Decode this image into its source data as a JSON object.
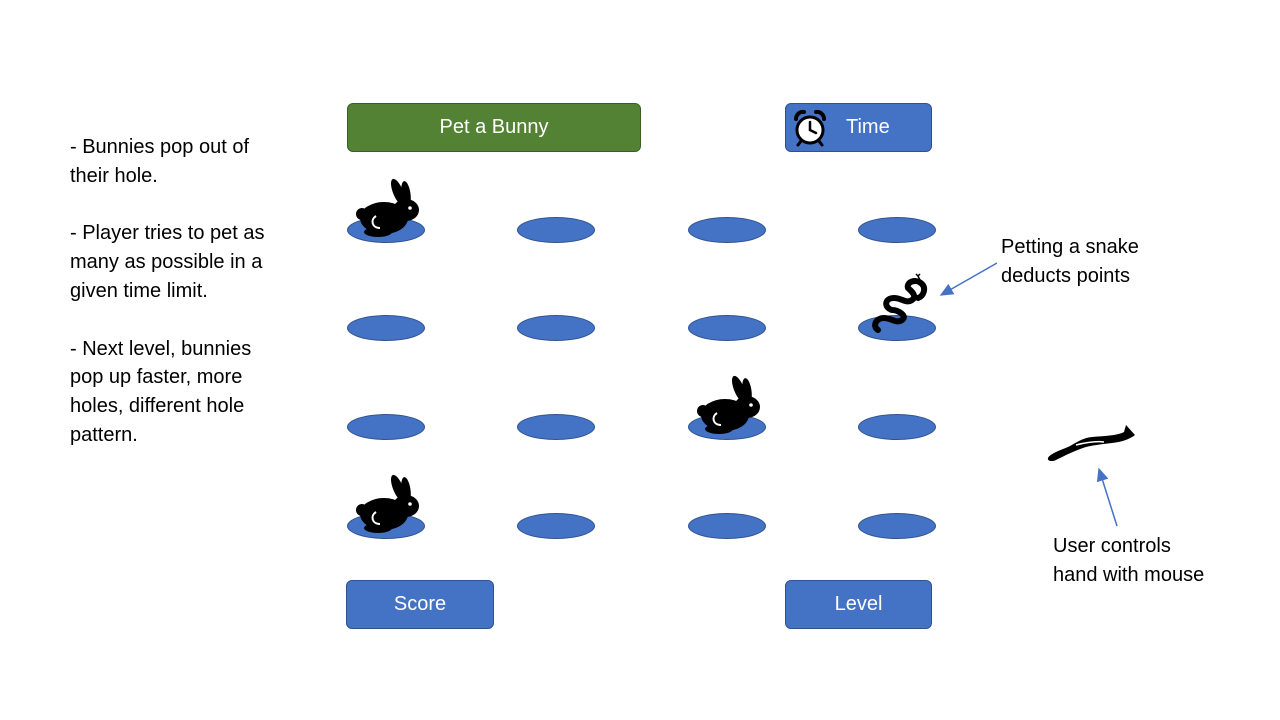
{
  "notes": [
    "- Bunnies pop out of their hole.",
    "- Player tries to pet as many as possible in a given time limit.",
    "- Next level, bunnies pop up faster, more holes, different hole pattern."
  ],
  "header": {
    "title": "Pet a Bunny",
    "time_label": "Time",
    "time_icon": "alarm-clock-icon"
  },
  "footer": {
    "score_label": "Score",
    "level_label": "Level"
  },
  "board": {
    "rows": 4,
    "cols": 4,
    "hole_color": "#4472c4",
    "occupants": [
      {
        "row": 1,
        "col": 1,
        "type": "bunny"
      },
      {
        "row": 2,
        "col": 4,
        "type": "snake"
      },
      {
        "row": 3,
        "col": 3,
        "type": "bunny"
      },
      {
        "row": 4,
        "col": 1,
        "type": "bunny"
      }
    ]
  },
  "annotations": {
    "snake": [
      "Petting a snake",
      "deducts points"
    ],
    "hand": [
      "User controls",
      "hand with mouse"
    ]
  },
  "icons": {
    "hand": "hand-icon",
    "bunny": "bunny-icon",
    "snake": "snake-icon"
  },
  "colors": {
    "title_bg": "#548235",
    "button_bg": "#4472c4",
    "border": "#2f528f",
    "arrow": "#4472c4"
  }
}
